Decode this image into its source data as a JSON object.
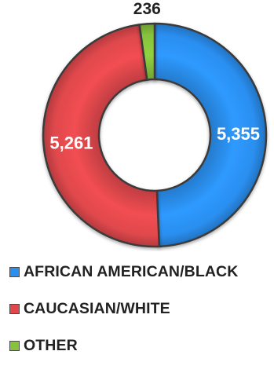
{
  "chart_data": {
    "type": "pie",
    "variant": "donut",
    "title": "",
    "categories": [
      "AFRICAN AMERICAN/BLACK",
      "CAUCASIAN/WHITE",
      "OTHER"
    ],
    "values": [
      5355,
      5261,
      236
    ],
    "value_labels": [
      "5,355",
      "5,261",
      "236"
    ],
    "colors": [
      "#2b8ff0",
      "#e0484c",
      "#86c23c"
    ],
    "legend_position": "bottom",
    "start_angle_degrees": 0,
    "direction": "clockwise"
  },
  "legend": {
    "items": [
      {
        "label": "AFRICAN AMERICAN/BLACK",
        "color": "#2b8ff0"
      },
      {
        "label": "CAUCASIAN/WHITE",
        "color": "#e0484c"
      },
      {
        "label": "OTHER",
        "color": "#86c23c"
      }
    ]
  }
}
